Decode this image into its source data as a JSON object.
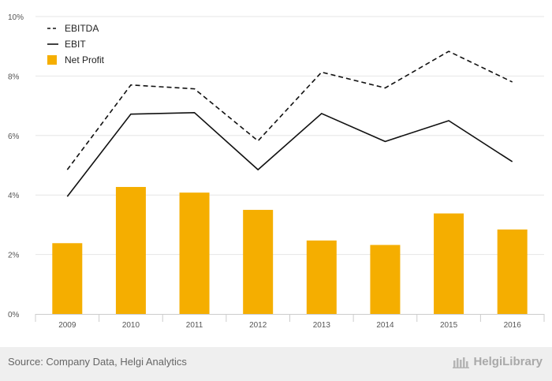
{
  "chart_data": {
    "type": "bar",
    "categories": [
      "2009",
      "2010",
      "2011",
      "2012",
      "2013",
      "2014",
      "2015",
      "2016"
    ],
    "y_ticks": [
      "0%",
      "2%",
      "4%",
      "6%",
      "8%",
      "10%"
    ],
    "ylim": [
      0,
      10
    ],
    "series": [
      {
        "name": "EBITDA",
        "kind": "line",
        "style": "dashed",
        "color": "#111111",
        "values": [
          4.85,
          7.7,
          7.57,
          5.82,
          8.13,
          7.6,
          8.83,
          7.8
        ]
      },
      {
        "name": "EBIT",
        "kind": "line",
        "style": "solid",
        "color": "#111111",
        "values": [
          3.95,
          6.72,
          6.77,
          4.85,
          6.74,
          5.8,
          6.5,
          5.12
        ]
      },
      {
        "name": "Net Profit",
        "kind": "bar",
        "color": "#F5AE00",
        "values": [
          2.38,
          4.27,
          4.08,
          3.5,
          2.47,
          2.32,
          3.38,
          2.84
        ]
      }
    ],
    "legend_position": "top-left",
    "grid": true
  },
  "footer": {
    "source": "Source: Company Data, Helgi Analytics",
    "brand": "HelgiLibrary"
  }
}
